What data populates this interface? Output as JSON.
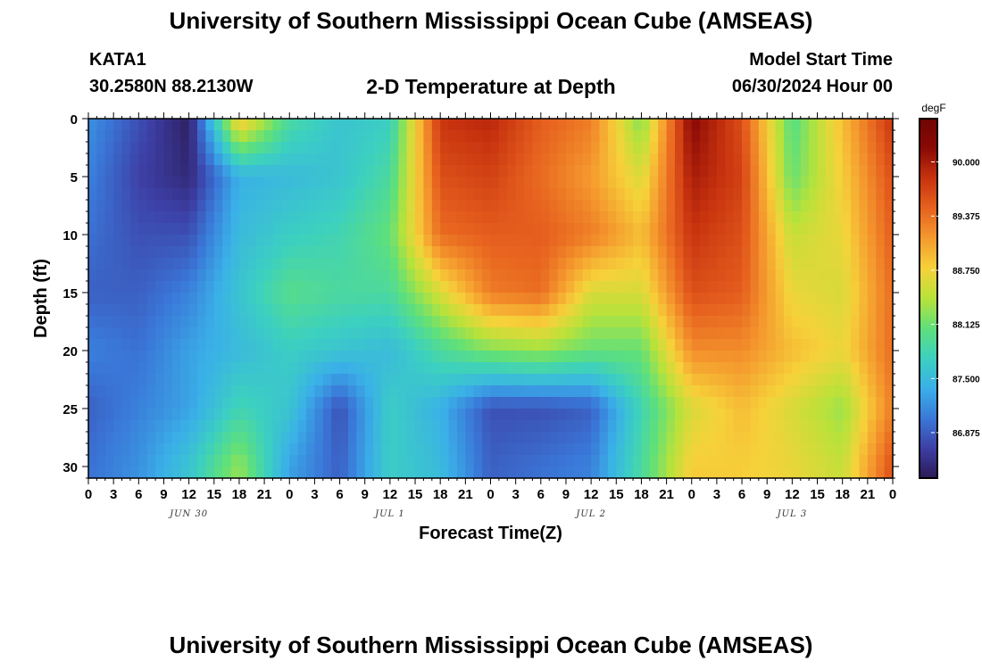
{
  "header": {
    "title": "University of Southern Mississippi Ocean Cube (AMSEAS)",
    "station": "KATA1",
    "location": "30.2580N  88.2130W",
    "subtitle": "2-D Temperature at Depth",
    "model_start_label": "Model Start Time",
    "model_start_value": "06/30/2024 Hour 00"
  },
  "footer": {
    "title": "University of Southern Mississippi Ocean Cube (AMSEAS)"
  },
  "chart_data": {
    "type": "heatmap",
    "title": "2-D Temperature at Depth",
    "xlabel": "Forecast Time(Z)",
    "ylabel": "Depth (ft)",
    "x_tick_labels": [
      "0",
      "3",
      "6",
      "9",
      "12",
      "15",
      "18",
      "21",
      "0",
      "3",
      "6",
      "9",
      "12",
      "15",
      "18",
      "21",
      "0",
      "3",
      "6",
      "9",
      "12",
      "15",
      "18",
      "21",
      "0",
      "3",
      "6",
      "9",
      "12",
      "15",
      "18",
      "21",
      "0"
    ],
    "day_labels": [
      "JUN 30",
      "JUL 1",
      "JUL 2",
      "JUL 3"
    ],
    "day_label_hours": [
      12,
      36,
      60,
      84
    ],
    "xlim_hours": [
      0,
      96
    ],
    "y_ticks": [
      "0",
      "5",
      "10",
      "15",
      "20",
      "25",
      "30"
    ],
    "ylim_ft": [
      0,
      31
    ],
    "y_inverted": true,
    "colorbar": {
      "unit": "degF",
      "range": [
        86.35,
        90.5
      ],
      "ticks": [
        "90.000",
        "89.375",
        "88.750",
        "88.125",
        "87.500",
        "86.875"
      ],
      "colors": [
        "#2b1a55",
        "#3d3fa5",
        "#3a78d8",
        "#3ab0e8",
        "#3cd0c0",
        "#5fe07a",
        "#b8e23a",
        "#f6d23a",
        "#f59a2e",
        "#e7621f",
        "#c8330f",
        "#8b0a05",
        "#6e0503"
      ]
    },
    "depth_levels_ft": [
      0,
      5,
      10,
      15,
      20,
      25,
      30
    ],
    "time_hours": [
      0,
      6,
      12,
      18,
      24,
      30,
      36,
      42,
      48,
      54,
      60,
      66,
      72,
      78,
      84,
      90,
      96
    ],
    "temperature_degF": [
      [
        87.2,
        86.8,
        86.4,
        88.9,
        87.9,
        87.6,
        87.7,
        89.8,
        89.9,
        89.5,
        89.3,
        88.2,
        90.2,
        89.6,
        88.0,
        88.9,
        89.8
      ],
      [
        87.1,
        86.7,
        86.5,
        87.4,
        87.5,
        87.6,
        87.9,
        89.6,
        89.7,
        89.4,
        89.1,
        88.6,
        90.0,
        89.7,
        88.1,
        88.8,
        89.6
      ],
      [
        87.0,
        86.8,
        86.8,
        87.5,
        87.7,
        87.8,
        88.1,
        89.4,
        89.5,
        89.5,
        89.3,
        88.9,
        89.8,
        89.6,
        88.5,
        88.7,
        89.5
      ],
      [
        86.9,
        86.9,
        87.1,
        87.6,
        88.0,
        87.9,
        87.9,
        88.6,
        89.3,
        89.4,
        88.6,
        88.6,
        89.6,
        89.5,
        88.7,
        88.6,
        89.4
      ],
      [
        87.1,
        87.0,
        87.3,
        87.5,
        87.7,
        87.6,
        87.5,
        87.9,
        88.2,
        88.3,
        88.1,
        88.1,
        89.2,
        89.2,
        88.9,
        88.7,
        89.4
      ],
      [
        86.9,
        87.1,
        87.3,
        87.8,
        87.6,
        86.8,
        87.7,
        87.4,
        86.8,
        86.8,
        86.9,
        87.8,
        88.6,
        88.9,
        88.6,
        88.3,
        89.3
      ],
      [
        87.0,
        87.2,
        87.6,
        88.3,
        87.3,
        86.9,
        87.7,
        87.5,
        86.9,
        87.0,
        87.1,
        87.9,
        88.8,
        88.8,
        88.7,
        88.5,
        89.6
      ]
    ]
  }
}
